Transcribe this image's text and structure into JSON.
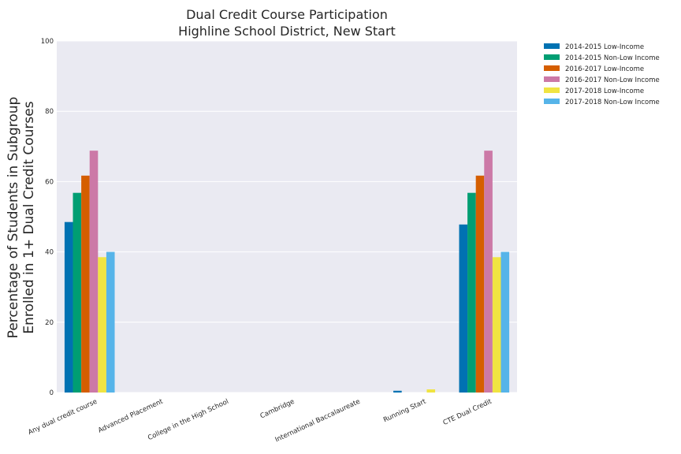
{
  "chart_data": {
    "type": "bar",
    "title": [
      "Dual Credit Course Participation",
      "Highline School District, New Start"
    ],
    "ylabel": [
      "Percentage of Students in Subgroup",
      "Enrolled in 1+ Dual Credit Courses"
    ],
    "xlabel": "",
    "ylim": [
      0,
      100
    ],
    "yticks": [
      0,
      20,
      40,
      60,
      80,
      100
    ],
    "grid": true,
    "legend_position": "outside-top-right",
    "categories": [
      "Any dual credit course",
      "Advanced Placement",
      "College in the High School",
      "Cambridge",
      "International Baccalaureate",
      "Running Start",
      "CTE Dual Credit"
    ],
    "series": [
      {
        "name": "2014-2015 Low-Income",
        "color": "#0072b2",
        "values": [
          48.5,
          0,
          0,
          0,
          0,
          0.5,
          47.8
        ]
      },
      {
        "name": "2014-2015 Non-Low Income",
        "color": "#009e73",
        "values": [
          56.8,
          0,
          0,
          0,
          0,
          0,
          56.8
        ]
      },
      {
        "name": "2016-2017 Low-Income",
        "color": "#d55e00",
        "values": [
          61.7,
          0,
          0,
          0,
          0,
          0,
          61.7
        ]
      },
      {
        "name": "2016-2017 Non-Low Income",
        "color": "#cc79a7",
        "values": [
          68.8,
          0,
          0,
          0,
          0,
          0,
          68.8
        ]
      },
      {
        "name": "2017-2018 Low-Income",
        "color": "#f0e442",
        "values": [
          38.5,
          0,
          0,
          0,
          0,
          0.9,
          38.5
        ]
      },
      {
        "name": "2017-2018 Non-Low Income",
        "color": "#56b4e9",
        "values": [
          40.0,
          0,
          0,
          0,
          0,
          0,
          40.0
        ]
      }
    ]
  }
}
